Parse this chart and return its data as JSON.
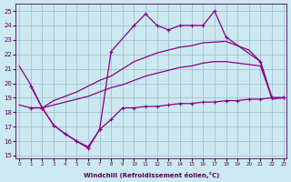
{
  "background_color": "#cce8f0",
  "grid_color": "#99bbcc",
  "line_color": "#880088",
  "xlabel": "Windchill (Refroidissement éolien,°C)",
  "ylim": [
    14.8,
    25.5
  ],
  "xlim": [
    -0.3,
    23.3
  ],
  "yticks": [
    15,
    16,
    17,
    18,
    19,
    20,
    21,
    22,
    23,
    24,
    25
  ],
  "xticks": [
    0,
    1,
    2,
    3,
    4,
    5,
    6,
    7,
    8,
    9,
    10,
    11,
    12,
    13,
    14,
    15,
    16,
    17,
    18,
    19,
    20,
    21,
    22,
    23
  ],
  "lw": 0.9,
  "ms": 2.5,
  "line_spike_x": [
    1,
    2,
    3,
    4,
    5,
    6,
    7,
    8,
    10,
    11,
    12,
    13,
    14,
    15,
    16,
    17,
    18,
    21,
    22,
    23
  ],
  "line_spike_y": [
    19.8,
    18.3,
    17.1,
    16.5,
    16.0,
    15.5,
    16.8,
    22.2,
    24.0,
    24.8,
    24.0,
    23.7,
    24.0,
    24.0,
    24.0,
    25.0,
    23.2,
    21.5,
    19.0,
    19.0
  ],
  "line_bottom_x": [
    1,
    2,
    3,
    4,
    5,
    6,
    7,
    8,
    9,
    10,
    11,
    12,
    13,
    14,
    15,
    16,
    17,
    18,
    19,
    20,
    21,
    22,
    23
  ],
  "line_bottom_y": [
    18.3,
    18.3,
    17.1,
    16.5,
    16.0,
    15.6,
    16.8,
    17.5,
    18.3,
    18.3,
    18.4,
    18.4,
    18.5,
    18.6,
    18.6,
    18.7,
    18.7,
    18.8,
    18.8,
    18.9,
    18.9,
    19.0,
    19.0
  ],
  "line_upper1_x": [
    0,
    1,
    2,
    3,
    4,
    5,
    6,
    7,
    8,
    9,
    10,
    11,
    12,
    13,
    14,
    15,
    16,
    17,
    18,
    19,
    20,
    21,
    22,
    23
  ],
  "line_upper1_y": [
    21.2,
    19.9,
    18.3,
    18.8,
    19.1,
    19.4,
    19.8,
    20.2,
    20.5,
    21.0,
    21.5,
    21.8,
    22.1,
    22.3,
    22.5,
    22.6,
    22.8,
    22.85,
    22.9,
    22.6,
    22.3,
    21.5,
    18.9,
    19.0
  ],
  "line_upper2_x": [
    0,
    1,
    2,
    3,
    4,
    5,
    6,
    7,
    8,
    9,
    10,
    11,
    12,
    13,
    14,
    15,
    16,
    17,
    18,
    19,
    20,
    21,
    22,
    23
  ],
  "line_upper2_y": [
    18.5,
    18.3,
    18.3,
    18.5,
    18.7,
    18.9,
    19.1,
    19.4,
    19.7,
    19.9,
    20.2,
    20.5,
    20.7,
    20.9,
    21.1,
    21.2,
    21.4,
    21.5,
    21.5,
    21.4,
    21.3,
    21.2,
    19.0,
    19.0
  ]
}
